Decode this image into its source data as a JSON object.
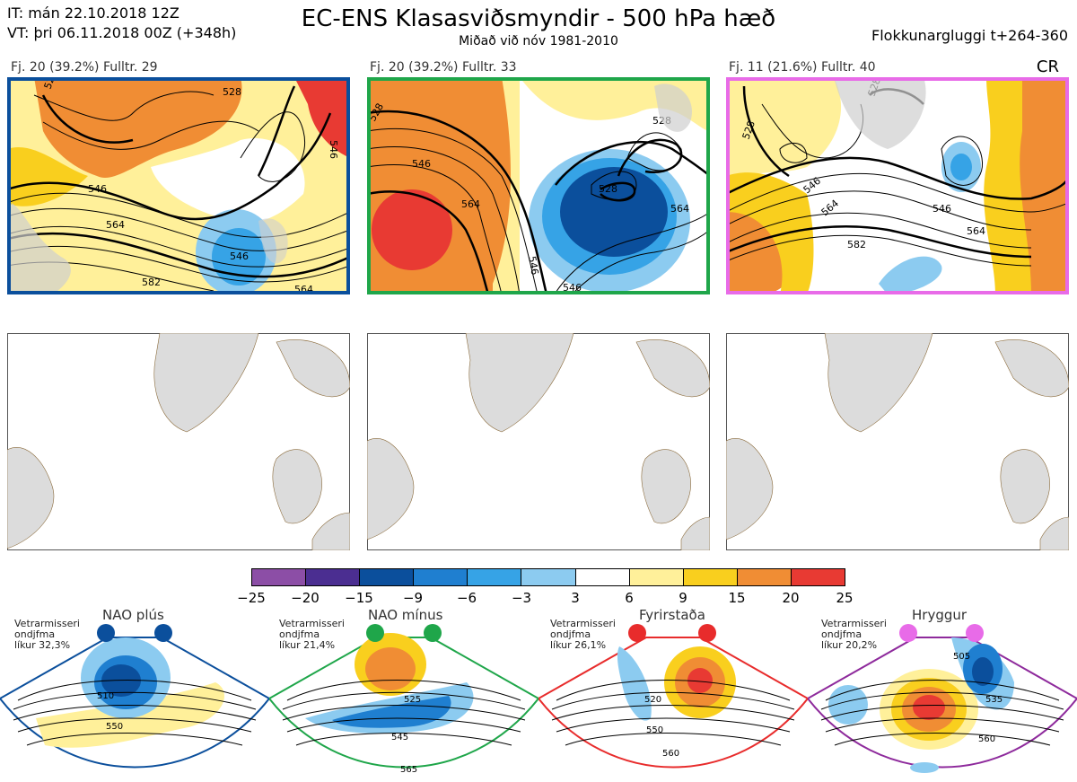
{
  "header": {
    "it": "IT: mán 22.10.2018 12Z",
    "vt": "VT: þri 06.11.2018 00Z  (+348h)",
    "title": "EC-ENS Klasasviðsmyndir - 500 hPa hæð",
    "subtitle": "Miðað við nóv 1981-2010",
    "window": "Flokkunargluggi t+264-360",
    "cr": "CR"
  },
  "panels": [
    {
      "label": "Fj. 20 (39.2%)   Fulltr. 29",
      "border": "#0b4f9c",
      "contours": [
        "528",
        "546",
        "564",
        "582",
        "546",
        "528",
        "546",
        "564"
      ]
    },
    {
      "label": "Fj. 20 (39.2%)   Fulltr. 33",
      "border": "#1fa64a",
      "contours": [
        "528",
        "546",
        "564",
        "546",
        "528",
        "528",
        "546",
        "564",
        "546"
      ]
    },
    {
      "label": "Fj. 11 (21.6%)   Fulltr. 40",
      "border": "#e86be8",
      "contours": [
        "528",
        "546",
        "564",
        "582",
        "528",
        "546",
        "564"
      ]
    }
  ],
  "legend": {
    "ticks": [
      "−25",
      "−20",
      "−15",
      "−9",
      "−6",
      "−3",
      "3",
      "6",
      "9",
      "15",
      "20",
      "25"
    ],
    "colors": [
      "#8c4ea6",
      "#4b2e91",
      "#0b4f9c",
      "#1f7fd0",
      "#36a3e6",
      "#8ccbf0",
      "#ffffff",
      "#fff09a",
      "#f9cf1e",
      "#f08d34",
      "#e83a33",
      "#b2141e"
    ]
  },
  "regimes": [
    {
      "name": "NAO plús",
      "prob": [
        "Vetrarmisseri",
        "ondjfma",
        "líkur 32,3%"
      ],
      "color": "#0b4f9c",
      "labels": [
        "510",
        "550"
      ]
    },
    {
      "name": "NAO mínus",
      "prob": [
        "Vetrarmisseri",
        "ondjfma",
        "líkur 21,4%"
      ],
      "color": "#1fa64a",
      "labels": [
        "525",
        "545",
        "565"
      ]
    },
    {
      "name": "Fyrirstaða",
      "prob": [
        "Vetrarmisseri",
        "ondjfma",
        "líkur 26,1%"
      ],
      "color": "#e82c2c",
      "labels": [
        "520",
        "550",
        "560"
      ]
    },
    {
      "name": "Hryggur",
      "prob": [
        "Vetrarmisseri",
        "ondjfma",
        "líkur 20,2%"
      ],
      "color": "#e86be8",
      "labels": [
        "505",
        "535",
        "560"
      ]
    }
  ]
}
